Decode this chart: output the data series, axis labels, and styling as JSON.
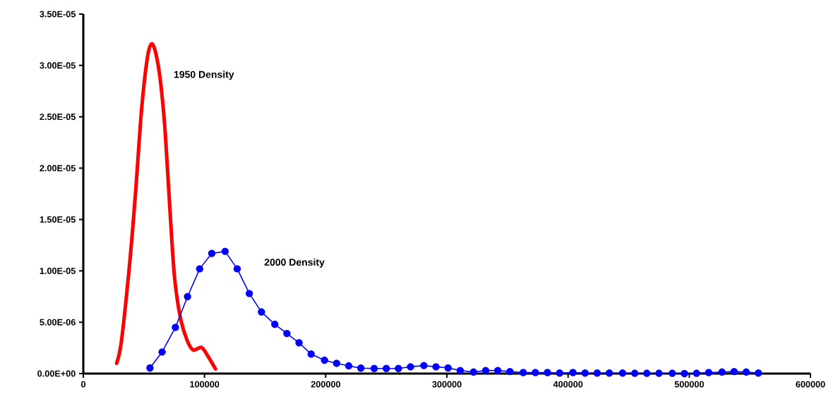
{
  "chart_data": {
    "type": "line",
    "xlim": [
      0,
      600000
    ],
    "ylim": [
      0,
      3.5e-05
    ],
    "xticks": [
      0,
      100000,
      200000,
      300000,
      400000,
      500000,
      600000
    ],
    "yticks": [
      {
        "value": 0,
        "label": "0.00E+00"
      },
      {
        "value": 5e-06,
        "label": "5.00E-06"
      },
      {
        "value": 1e-05,
        "label": "1.00E-05"
      },
      {
        "value": 1.5e-05,
        "label": "1.50E-05"
      },
      {
        "value": 2e-05,
        "label": "2.00E-05"
      },
      {
        "value": 2.5e-05,
        "label": "2.50E-05"
      },
      {
        "value": 3e-05,
        "label": "3.00E-05"
      },
      {
        "value": 3.5e-05,
        "label": "3.50E-05"
      }
    ],
    "series": [
      {
        "name": "1950 Density",
        "color": "#ff0000",
        "marker": "none",
        "x": [
          27500,
          31500,
          38300,
          43100,
          48000,
          52800,
          56300,
          59600,
          63500,
          67400,
          71200,
          75100,
          80000,
          85800,
          90700,
          97500,
          102300,
          109100
        ],
        "values": [
          1e-06,
          3.2e-06,
          1.08e-05,
          1.76e-05,
          2.56e-05,
          3.07e-05,
          3.21e-05,
          3.13e-05,
          2.86e-05,
          2.38e-05,
          1.65e-05,
          9.6e-06,
          5.5e-06,
          3.2e-06,
          2.3e-06,
          2.55e-06,
          1.8e-06,
          4.5e-07
        ]
      },
      {
        "name": "2000 Density",
        "color": "#0000ff",
        "marker": "circle",
        "x": [
          55000,
          65000,
          76000,
          86000,
          96000,
          106000,
          117000,
          127000,
          137000,
          147000,
          158000,
          168000,
          178000,
          188000,
          199000,
          209000,
          219000,
          229000,
          240000,
          250000,
          260000,
          270000,
          281000,
          291000,
          301000,
          311000,
          322000,
          332000,
          342000,
          352000,
          363000,
          373000,
          383000,
          393000,
          404000,
          414000,
          424000,
          434000,
          445000,
          455000,
          465000,
          475000,
          486000,
          496000,
          506000,
          516000,
          527000,
          537000,
          547000,
          557000
        ],
        "values": [
          5.5e-07,
          2.1e-06,
          4.5e-06,
          7.5e-06,
          1.02e-05,
          1.17e-05,
          1.19e-05,
          1.02e-05,
          7.8e-06,
          6e-06,
          4.8e-06,
          3.9e-06,
          3e-06,
          1.9e-06,
          1.3e-06,
          1e-06,
          7.5e-07,
          5.3e-07,
          5e-07,
          5e-07,
          5e-07,
          6.6e-07,
          7.8e-07,
          6.6e-07,
          5.5e-07,
          3e-07,
          1.5e-07,
          3e-07,
          3e-07,
          2e-07,
          1e-07,
          1e-07,
          1e-07,
          5e-08,
          1e-07,
          5e-08,
          5e-08,
          5e-08,
          5e-08,
          3e-08,
          3e-08,
          3e-08,
          3e-08,
          0.0,
          3e-08,
          1e-07,
          1.5e-07,
          2e-07,
          1.5e-07,
          5e-08
        ]
      }
    ]
  }
}
